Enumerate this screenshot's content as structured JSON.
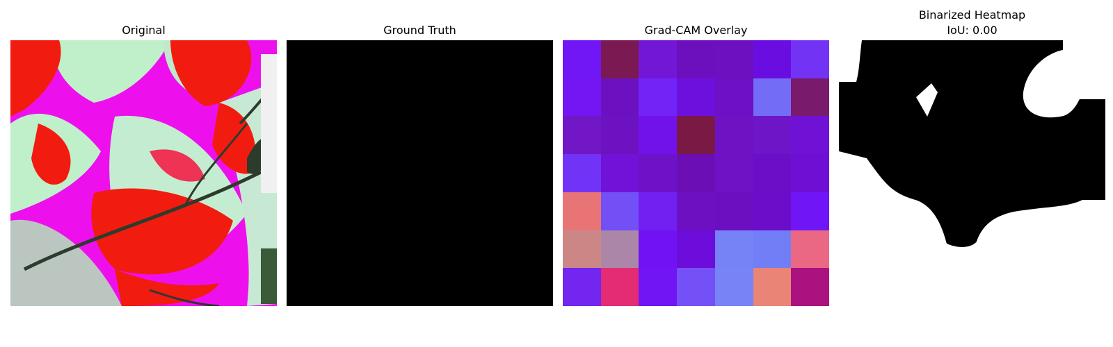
{
  "panels": {
    "original": {
      "title": "Original"
    },
    "ground_truth": {
      "title": "Ground Truth",
      "fill": "#000000"
    },
    "gradcam": {
      "title": "Grad-CAM Overlay",
      "cells": [
        [
          "#7116f5",
          "#7b1a52",
          "#7317d6",
          "#6c10be",
          "#6c10c0",
          "#690de0",
          "#7333f5"
        ],
        [
          "#7416f3",
          "#6c11c0",
          "#7224f7",
          "#6d10dd",
          "#6d10c6",
          "#726cf6",
          "#791a6d"
        ],
        [
          "#7117c5",
          "#6c12c0",
          "#7212ea",
          "#7a1a44",
          "#6e13c3",
          "#6e15c8",
          "#6f12d6"
        ],
        [
          "#7134f6",
          "#7012d8",
          "#6e12c7",
          "#6b0eb4",
          "#6f12c6",
          "#6b0ec8",
          "#6e10d4"
        ],
        [
          "#e97475",
          "#734ff6",
          "#7220f1",
          "#6d10c2",
          "#6b0fc0",
          "#6c0ec9",
          "#7015f6"
        ],
        [
          "#cd8686",
          "#ab86a9",
          "#7012f3",
          "#6d0ddb",
          "#7583f6",
          "#727ef6",
          "#ea6884"
        ],
        [
          "#7226f0",
          "#e42c74",
          "#7115f4",
          "#7451f6",
          "#7883f6",
          "#ea8476",
          "#aa1280"
        ]
      ]
    },
    "binarized": {
      "title_line1": "Binarized Heatmap",
      "title_line2": "IoU: 0.00"
    }
  },
  "colors": {
    "leaf_red": "#f21b10",
    "leaf_magenta": "#ee10ec",
    "leaf_light_green": "#bff0c9",
    "dark_edge": "#2c3b2c",
    "mask_black": "#000000",
    "mask_white": "#ffffff"
  },
  "icons": []
}
